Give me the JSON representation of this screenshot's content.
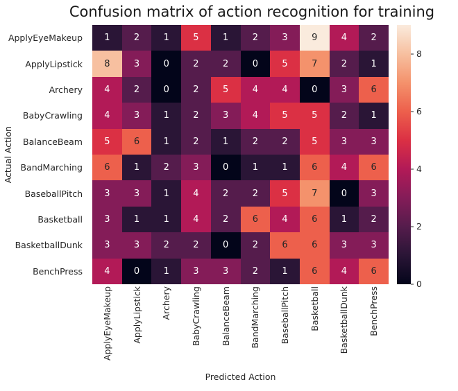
{
  "figure": {
    "background": "#ffffff",
    "text_color": "#262626",
    "title_color": "#1a1a1a"
  },
  "chart_data": {
    "type": "heatmap",
    "title": "Confusion matrix of action recognition for training",
    "xlabel": "Predicted Action",
    "ylabel": "Actual Action",
    "categories": [
      "ApplyEyeMakeup",
      "ApplyLipstick",
      "Archery",
      "BabyCrawling",
      "BalanceBeam",
      "BandMarching",
      "BaseballPitch",
      "Basketball",
      "BasketballDunk",
      "BenchPress"
    ],
    "values": [
      [
        1,
        2,
        1,
        5,
        1,
        2,
        3,
        9,
        4,
        2
      ],
      [
        8,
        3,
        0,
        2,
        2,
        0,
        5,
        7,
        2,
        1
      ],
      [
        4,
        2,
        0,
        2,
        5,
        4,
        4,
        0,
        3,
        6
      ],
      [
        4,
        3,
        1,
        2,
        3,
        4,
        5,
        5,
        2,
        1
      ],
      [
        5,
        6,
        1,
        2,
        1,
        2,
        2,
        5,
        3,
        3
      ],
      [
        6,
        1,
        2,
        3,
        0,
        1,
        1,
        6,
        4,
        6
      ],
      [
        3,
        3,
        1,
        4,
        2,
        2,
        5,
        7,
        0,
        3
      ],
      [
        3,
        1,
        1,
        4,
        2,
        6,
        4,
        6,
        1,
        2
      ],
      [
        3,
        3,
        2,
        2,
        0,
        2,
        6,
        6,
        3,
        3
      ],
      [
        4,
        0,
        1,
        3,
        3,
        2,
        1,
        6,
        4,
        6
      ]
    ],
    "vmin": 0,
    "vmax": 9,
    "colormap": "rocket",
    "palette": [
      "#03051A",
      "#2A1536",
      "#551C4C",
      "#841C58",
      "#B21A57",
      "#DB3044",
      "#ED604C",
      "#F4926C",
      "#F7C0A0",
      "#FAEBDD"
    ],
    "colorbar_ticks": [
      0,
      2,
      4,
      6,
      8
    ],
    "colorbar_position": "right",
    "grid": false,
    "annotation": {
      "light_text_color": "#FFFFFF",
      "dark_text_color": "#262626",
      "dark_text_min_value": 6
    }
  }
}
